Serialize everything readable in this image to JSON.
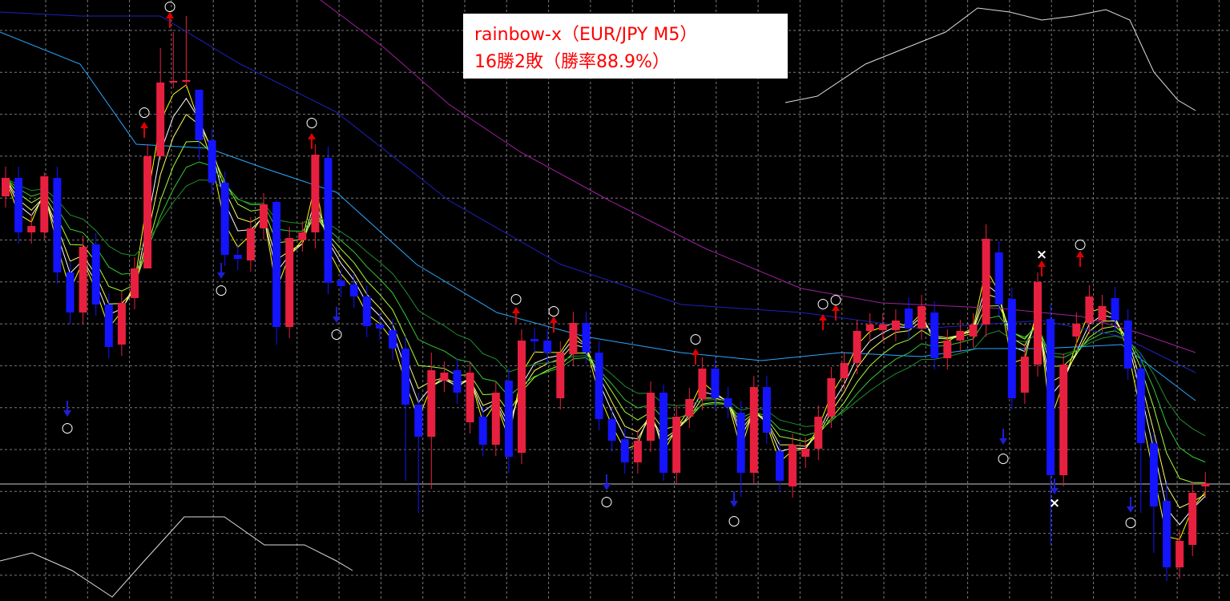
{
  "title_box": {
    "line1": "rainbow-x（EUR/JPY M5）",
    "line2": "16勝2敗（勝率88.9%）"
  },
  "signals": [
    "○",
    "○",
    "○",
    "○",
    "○",
    "○",
    "○",
    "○",
    "○",
    "○",
    "○",
    "○",
    "○",
    "○",
    "×",
    "×",
    "○",
    "○"
  ]
}
